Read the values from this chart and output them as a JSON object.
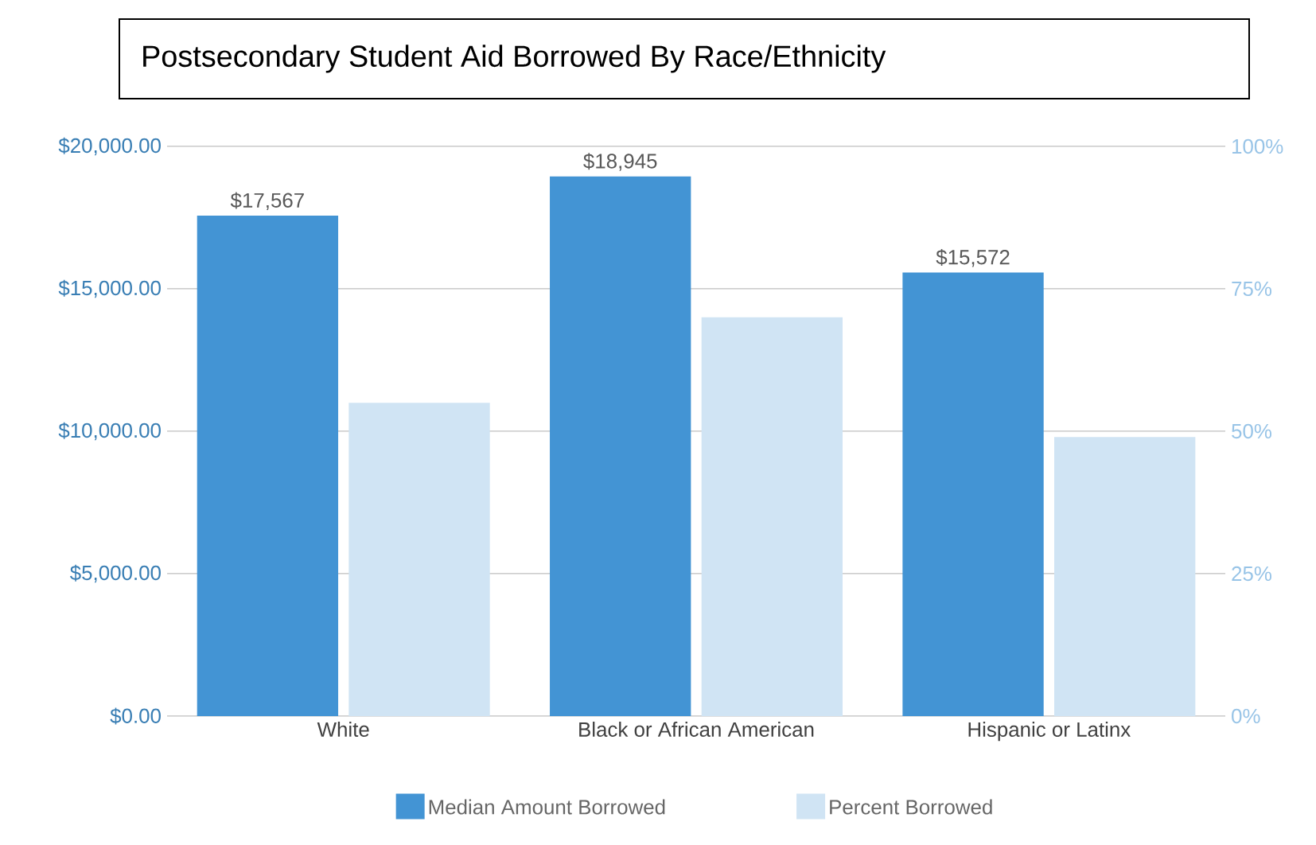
{
  "chart_data": {
    "type": "bar",
    "title": "Postsecondary Student Aid Borrowed By Race/Ethnicity",
    "categories": [
      "White",
      "Black or African American",
      "Hispanic or Latinx"
    ],
    "series": [
      {
        "name": "Median Amount Borrowed",
        "color": "#4394d4",
        "values": [
          17567,
          18945,
          15572
        ],
        "value_labels": [
          "$17,567",
          "$18,945",
          "$15,572"
        ]
      },
      {
        "name": "Percent Borrowed",
        "color": "#d0e4f4",
        "values": [
          55,
          70,
          49
        ],
        "axis": "y2"
      }
    ],
    "ylim": [
      0,
      20000
    ],
    "yticks": [
      {
        "value": 0,
        "label": "$0.00"
      },
      {
        "value": 5000,
        "label": "$5,000.00"
      },
      {
        "value": 10000,
        "label": "$10,000.00"
      },
      {
        "value": 15000,
        "label": "$15,000.00"
      },
      {
        "value": 20000,
        "label": "$20,000.00"
      }
    ],
    "y2lim": [
      0,
      100
    ],
    "y2ticks": [
      {
        "value": 0,
        "label": "0%"
      },
      {
        "value": 25,
        "label": "25%"
      },
      {
        "value": 50,
        "label": "50%"
      },
      {
        "value": 75,
        "label": "75%"
      },
      {
        "value": 100,
        "label": "100%"
      }
    ],
    "grid": "y",
    "legend": "bottom"
  }
}
